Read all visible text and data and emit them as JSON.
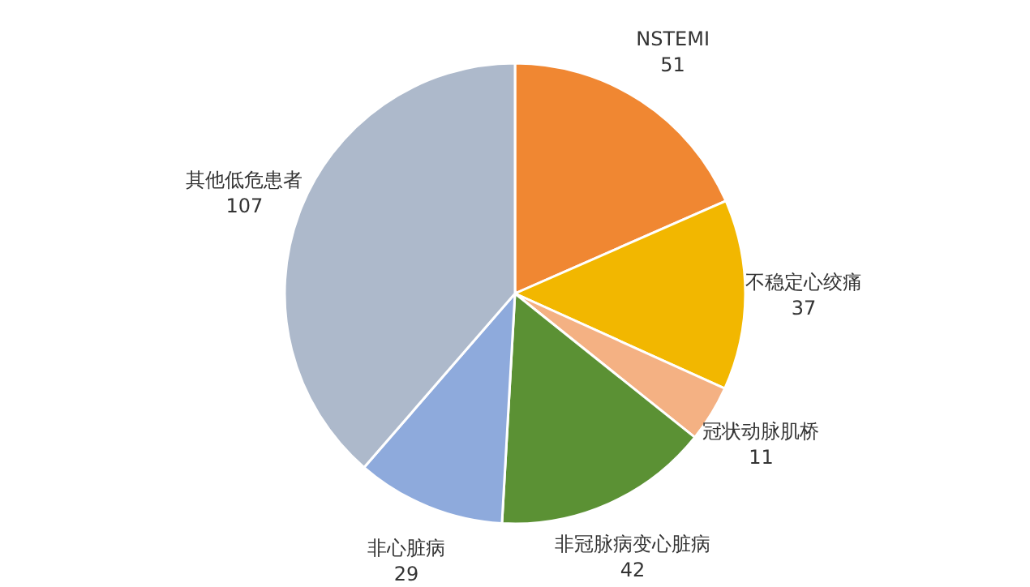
{
  "chart_data": {
    "type": "pie",
    "categories": [
      "NSTEMI",
      "不稳定心绞痛",
      "冠状动脉肌桥",
      "非冠脉病变心脏病",
      "非心脏病",
      "其他低危患者"
    ],
    "values": [
      51,
      37,
      11,
      42,
      29,
      107
    ],
    "colors": [
      "#f08732",
      "#f2b700",
      "#f4b183",
      "#5b9134",
      "#8eaadc",
      "#adb9cb"
    ],
    "data_labels": true,
    "legend": false
  }
}
